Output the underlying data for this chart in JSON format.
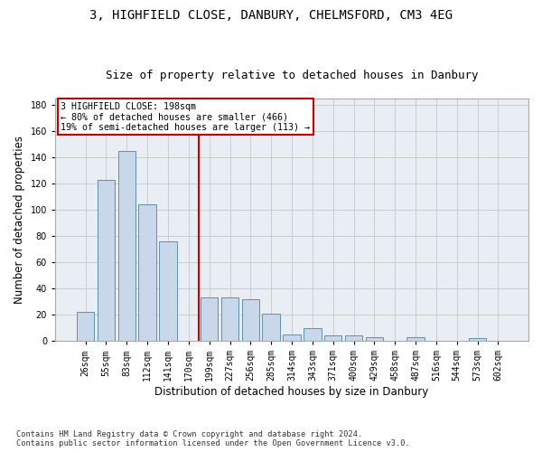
{
  "title_line1": "3, HIGHFIELD CLOSE, DANBURY, CHELMSFORD, CM3 4EG",
  "title_line2": "Size of property relative to detached houses in Danbury",
  "xlabel": "Distribution of detached houses by size in Danbury",
  "ylabel": "Number of detached properties",
  "footnote": "Contains HM Land Registry data © Crown copyright and database right 2024.\nContains public sector information licensed under the Open Government Licence v3.0.",
  "bar_labels": [
    "26sqm",
    "55sqm",
    "83sqm",
    "112sqm",
    "141sqm",
    "170sqm",
    "199sqm",
    "227sqm",
    "256sqm",
    "285sqm",
    "314sqm",
    "343sqm",
    "371sqm",
    "400sqm",
    "429sqm",
    "458sqm",
    "487sqm",
    "516sqm",
    "544sqm",
    "573sqm",
    "602sqm"
  ],
  "bar_values": [
    22,
    123,
    145,
    104,
    76,
    0,
    33,
    33,
    32,
    21,
    5,
    10,
    4,
    4,
    3,
    0,
    3,
    0,
    0,
    2,
    0
  ],
  "bar_color": "#c8d8ea",
  "bar_edge_color": "#6090b0",
  "marker_label": "3 HIGHFIELD CLOSE: 198sqm",
  "pct_smaller": "80% of detached houses are smaller (466)",
  "pct_larger": "19% of semi-detached houses are larger (113)",
  "annotation_box_color": "#cc0000",
  "marker_bin_index": 6,
  "ylim": [
    0,
    185
  ],
  "yticks": [
    0,
    20,
    40,
    60,
    80,
    100,
    120,
    140,
    160,
    180
  ],
  "grid_color": "#cccccc",
  "bg_color": "#e8eef4",
  "title_fontsize": 10,
  "subtitle_fontsize": 9,
  "axis_label_fontsize": 8.5,
  "tick_fontsize": 7
}
